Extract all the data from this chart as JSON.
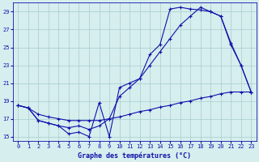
{
  "title": "Graphe des températures (°C)",
  "background_color": "#d6eeee",
  "grid_color": "#a8cccc",
  "line_color": "#1010aa",
  "xlim": [
    -0.5,
    23.5
  ],
  "ylim": [
    14.5,
    30.0
  ],
  "yticks": [
    15,
    17,
    19,
    21,
    23,
    25,
    27,
    29
  ],
  "xticks": [
    0,
    1,
    2,
    3,
    4,
    5,
    6,
    7,
    8,
    9,
    10,
    11,
    12,
    13,
    14,
    15,
    16,
    17,
    18,
    19,
    20,
    21,
    22,
    23
  ],
  "series": [
    [
      18.5,
      18.2,
      16.8,
      16.5,
      16.2,
      15.3,
      15.5,
      15.0,
      18.8,
      15.0,
      20.5,
      21.0,
      21.5,
      24.2,
      25.3,
      29.3,
      29.5,
      29.3,
      29.2,
      29.0,
      28.5,
      25.3,
      23.0,
      20.0
    ],
    [
      18.5,
      18.2,
      16.8,
      16.5,
      16.2,
      16.0,
      16.2,
      15.8,
      16.2,
      17.0,
      19.5,
      20.5,
      21.5,
      23.0,
      24.5,
      26.0,
      27.5,
      28.5,
      29.5,
      29.0,
      28.5,
      25.5,
      23.0,
      20.0
    ],
    [
      18.5,
      18.2,
      17.5,
      17.2,
      17.0,
      16.8,
      16.8,
      16.8,
      16.8,
      17.0,
      17.2,
      17.5,
      17.8,
      18.0,
      18.3,
      18.5,
      18.8,
      19.0,
      19.3,
      19.5,
      19.8,
      20.0,
      20.0,
      20.0
    ]
  ]
}
